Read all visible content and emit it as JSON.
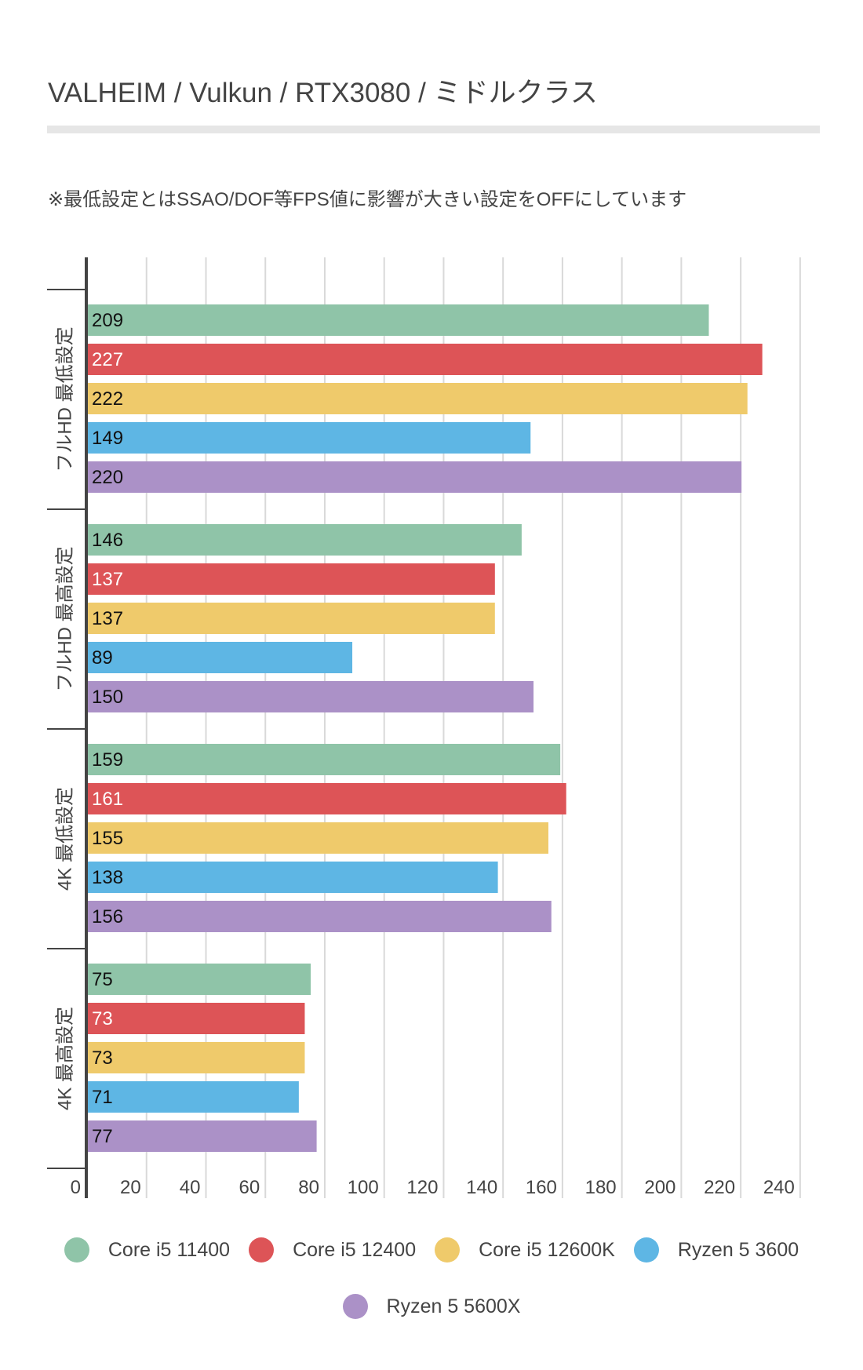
{
  "header": {
    "title": "VALHEIM / Vulkun /  RTX3080 / ミドルクラス",
    "note": "※最低設定とはSSAO/DOF等FPS値に影響が大きい設定をOFFにしています"
  },
  "chart_data": {
    "type": "bar",
    "orientation": "horizontal",
    "title": "VALHEIM / Vulkun /  RTX3080 / ミドルクラス",
    "subtitle": "※最低設定とはSSAO/DOF等FPS値に影響が大きい設定をOFFにしています",
    "xlabel": "",
    "ylabel": "",
    "xlim": [
      0,
      240
    ],
    "x_ticks": [
      0,
      20,
      40,
      60,
      80,
      100,
      120,
      140,
      160,
      180,
      200,
      220,
      240
    ],
    "grid": true,
    "legend_position": "bottom-center",
    "categories": [
      "フルHD 最低設定",
      "フルHD 最高設定",
      "4K 最低設定",
      "4K 最高設定"
    ],
    "series": [
      {
        "name": "Core i5 11400",
        "color": "#8fc4a8",
        "label_color": "#111111",
        "values": [
          209,
          146,
          159,
          75
        ]
      },
      {
        "name": "Core i5 12400",
        "color": "#dd5457",
        "label_color": "#ffffff",
        "values": [
          227,
          137,
          161,
          73
        ]
      },
      {
        "name": "Core i5 12600K",
        "color": "#efca6b",
        "label_color": "#111111",
        "values": [
          222,
          137,
          155,
          73
        ]
      },
      {
        "name": "Ryzen 5 3600",
        "color": "#5eb6e4",
        "label_color": "#111111",
        "values": [
          149,
          89,
          138,
          71
        ]
      },
      {
        "name": "Ryzen 5 5600X",
        "color": "#ab91c7",
        "label_color": "#111111",
        "values": [
          220,
          150,
          156,
          77
        ]
      }
    ]
  },
  "legend": {
    "rows": [
      [
        0,
        1,
        2,
        3
      ],
      [
        4
      ]
    ]
  }
}
